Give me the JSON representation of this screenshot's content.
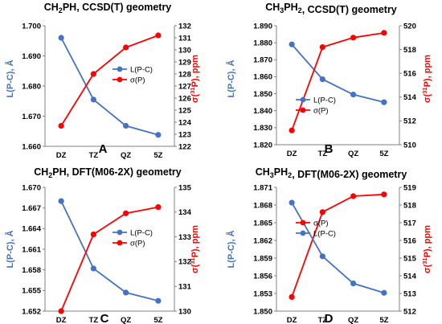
{
  "colors": {
    "left": "#4472C4",
    "right": "#FF0000",
    "axis": "#808080",
    "text": "#000000"
  },
  "chart_data": [
    {
      "type": "line",
      "letter": "A",
      "title": "CH2PH, CCSD(T) geometry",
      "categories": [
        "DZ",
        "TZ",
        "QZ",
        "5Z"
      ],
      "ylabel_left": "L(P-C), Å",
      "ylabel_right": "σ(31P), ppm",
      "ylim_left": [
        1.66,
        1.7
      ],
      "yticks_left": [
        "1.660",
        "1.670",
        "1.680",
        "1.690",
        "1.700"
      ],
      "ylim_right": [
        122,
        132
      ],
      "yticks_right": [
        "122",
        "123",
        "124",
        "125",
        "126",
        "127",
        "128",
        "129",
        "130",
        "131",
        "132"
      ],
      "legend_position": "right",
      "series": [
        {
          "name": "L(P-C)",
          "axis": "left",
          "values": [
            1.696,
            1.6755,
            1.6668,
            1.6638
          ]
        },
        {
          "name": "σ(P)",
          "axis": "right",
          "values": [
            123.7,
            128.0,
            130.2,
            131.2
          ]
        }
      ]
    },
    {
      "type": "line",
      "letter": "B",
      "title": "CH3PH2, CCSD(T) geometry",
      "categories": [
        "DZ",
        "TZ",
        "QZ",
        "5Z"
      ],
      "ylabel_left": "L(P-C), Å",
      "ylabel_right": "σ(31P), ppm",
      "ylim_left": [
        1.82,
        1.89
      ],
      "yticks_left": [
        "1.820",
        "1.830",
        "1.840",
        "1.850",
        "1.860",
        "1.870",
        "1.880",
        "1.890"
      ],
      "ylim_right": [
        510,
        520
      ],
      "yticks_right": [
        "510",
        "512",
        "514",
        "516",
        "518",
        "520"
      ],
      "legend_position": "bottom-center",
      "series": [
        {
          "name": "L(P-C)",
          "axis": "left",
          "values": [
            1.879,
            1.8585,
            1.8495,
            1.845
          ]
        },
        {
          "name": "σ(P)",
          "axis": "right",
          "values": [
            511.2,
            518.2,
            519.0,
            519.4
          ]
        }
      ]
    },
    {
      "type": "line",
      "letter": "C",
      "title": "CH2PH, DFT(M06-2X) geometry",
      "categories": [
        "DZ",
        "TZ",
        "QZ",
        "5Z"
      ],
      "ylabel_left": "L(P-C), Å",
      "ylabel_right": "σ(31P), ppm",
      "ylim_left": [
        1.652,
        1.67
      ],
      "yticks_left": [
        "1.652",
        "1.655",
        "1.658",
        "1.661",
        "1.664",
        "1.667",
        "1.670"
      ],
      "ylim_right": [
        130,
        135
      ],
      "yticks_right": [
        "130",
        "131",
        "132",
        "133",
        "134",
        "135"
      ],
      "legend_position": "right",
      "series": [
        {
          "name": "L(P-C)",
          "axis": "left",
          "values": [
            1.668,
            1.6582,
            1.6547,
            1.6535
          ]
        },
        {
          "name": "σ(P)",
          "axis": "right",
          "values": [
            130.0,
            133.1,
            133.95,
            134.2
          ]
        }
      ]
    },
    {
      "type": "line",
      "letter": "D",
      "title": "CH3PH2, DFT(M06-2X) geometry",
      "categories": [
        "DZ",
        "TZ",
        "QZ",
        "5Z"
      ],
      "ylabel_left": "L(P-C), Å",
      "ylabel_right": "σ(31P), ppm",
      "ylim_left": [
        1.85,
        1.871
      ],
      "yticks_left": [
        "1.850",
        "1.853",
        "1.856",
        "1.859",
        "1.862",
        "1.865",
        "1.868",
        "1.871"
      ],
      "ylim_right": [
        512,
        519
      ],
      "yticks_right": [
        "512",
        "513",
        "514",
        "515",
        "516",
        "517",
        "518",
        "519"
      ],
      "legend_position": "center",
      "series": [
        {
          "name": "σ(P)",
          "axis": "right",
          "values": [
            512.8,
            517.6,
            518.5,
            518.6
          ]
        },
        {
          "name": "L(P-C)",
          "axis": "left",
          "values": [
            1.8684,
            1.8593,
            1.8547,
            1.8531
          ]
        }
      ]
    }
  ]
}
